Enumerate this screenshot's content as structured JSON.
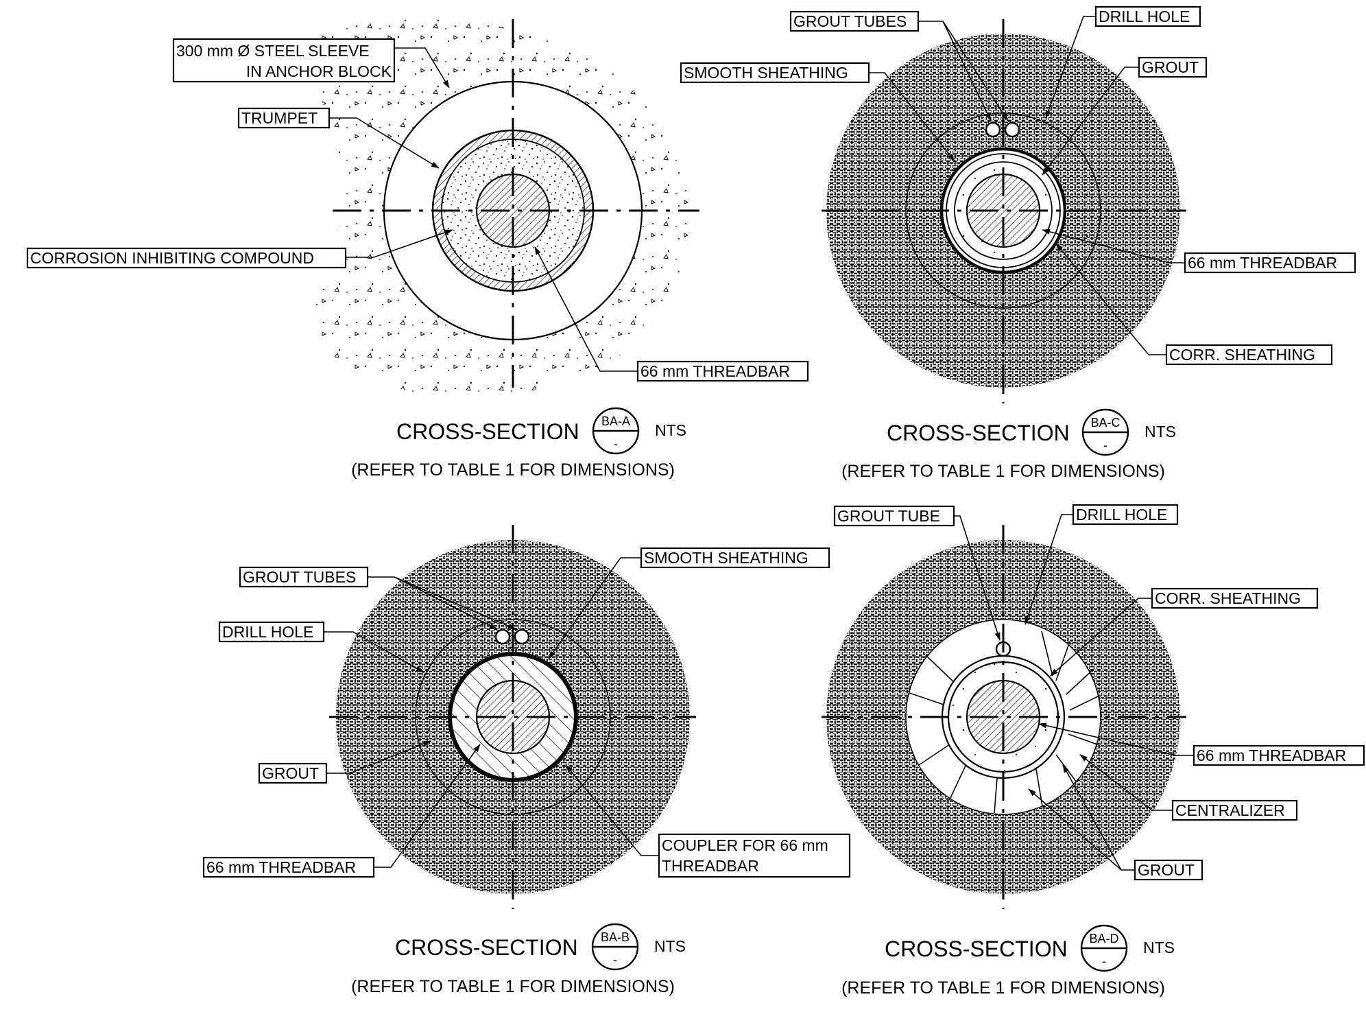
{
  "sections": [
    {
      "id": "a",
      "title": "CROSS-SECTION",
      "mark_top": "BA-A",
      "mark_bottom": "-",
      "scale": "NTS",
      "note": "(REFER TO TABLE 1 FOR DIMENSIONS)",
      "labels": {
        "sleeve_l1": "300 mm Ø STEEL SLEEVE",
        "sleeve_l2": "IN ANCHOR BLOCK",
        "trumpet": "TRUMPET",
        "compound": "CORROSION INHIBITING COMPOUND",
        "threadbar": "66 mm THREADBAR"
      }
    },
    {
      "id": "c",
      "title": "CROSS-SECTION",
      "mark_top": "BA-C",
      "mark_bottom": "-",
      "scale": "NTS",
      "note": "(REFER TO TABLE 1 FOR DIMENSIONS)",
      "labels": {
        "grout_tubes": "GROUT TUBES",
        "drill_hole": "DRILL HOLE",
        "smooth_sheathing": "SMOOTH SHEATHING",
        "grout": "GROUT",
        "threadbar": "66 mm THREADBAR",
        "corr_sheathing": "CORR. SHEATHING"
      }
    },
    {
      "id": "b",
      "title": "CROSS-SECTION",
      "mark_top": "BA-B",
      "mark_bottom": "-",
      "scale": "NTS",
      "note": "(REFER TO TABLE 1 FOR DIMENSIONS)",
      "labels": {
        "smooth_sheathing": "SMOOTH SHEATHING",
        "grout_tubes": "GROUT TUBES",
        "drill_hole": "DRILL HOLE",
        "grout": "GROUT",
        "threadbar": "66 mm THREADBAR",
        "coupler_l1": "COUPLER FOR 66 mm",
        "coupler_l2": "THREADBAR"
      }
    },
    {
      "id": "d",
      "title": "CROSS-SECTION",
      "mark_top": "BA-D",
      "mark_bottom": "-",
      "scale": "NTS",
      "note": "(REFER TO TABLE 1 FOR DIMENSIONS)",
      "labels": {
        "grout_tube": "GROUT TUBE",
        "drill_hole": "DRILL HOLE",
        "corr_sheathing": "CORR. SHEATHING",
        "threadbar": "66 mm THREADBAR",
        "centralizer": "CENTRALIZER",
        "grout": "GROUT"
      }
    }
  ],
  "colors": {
    "ink": "#000000",
    "paper": "#ffffff"
  }
}
